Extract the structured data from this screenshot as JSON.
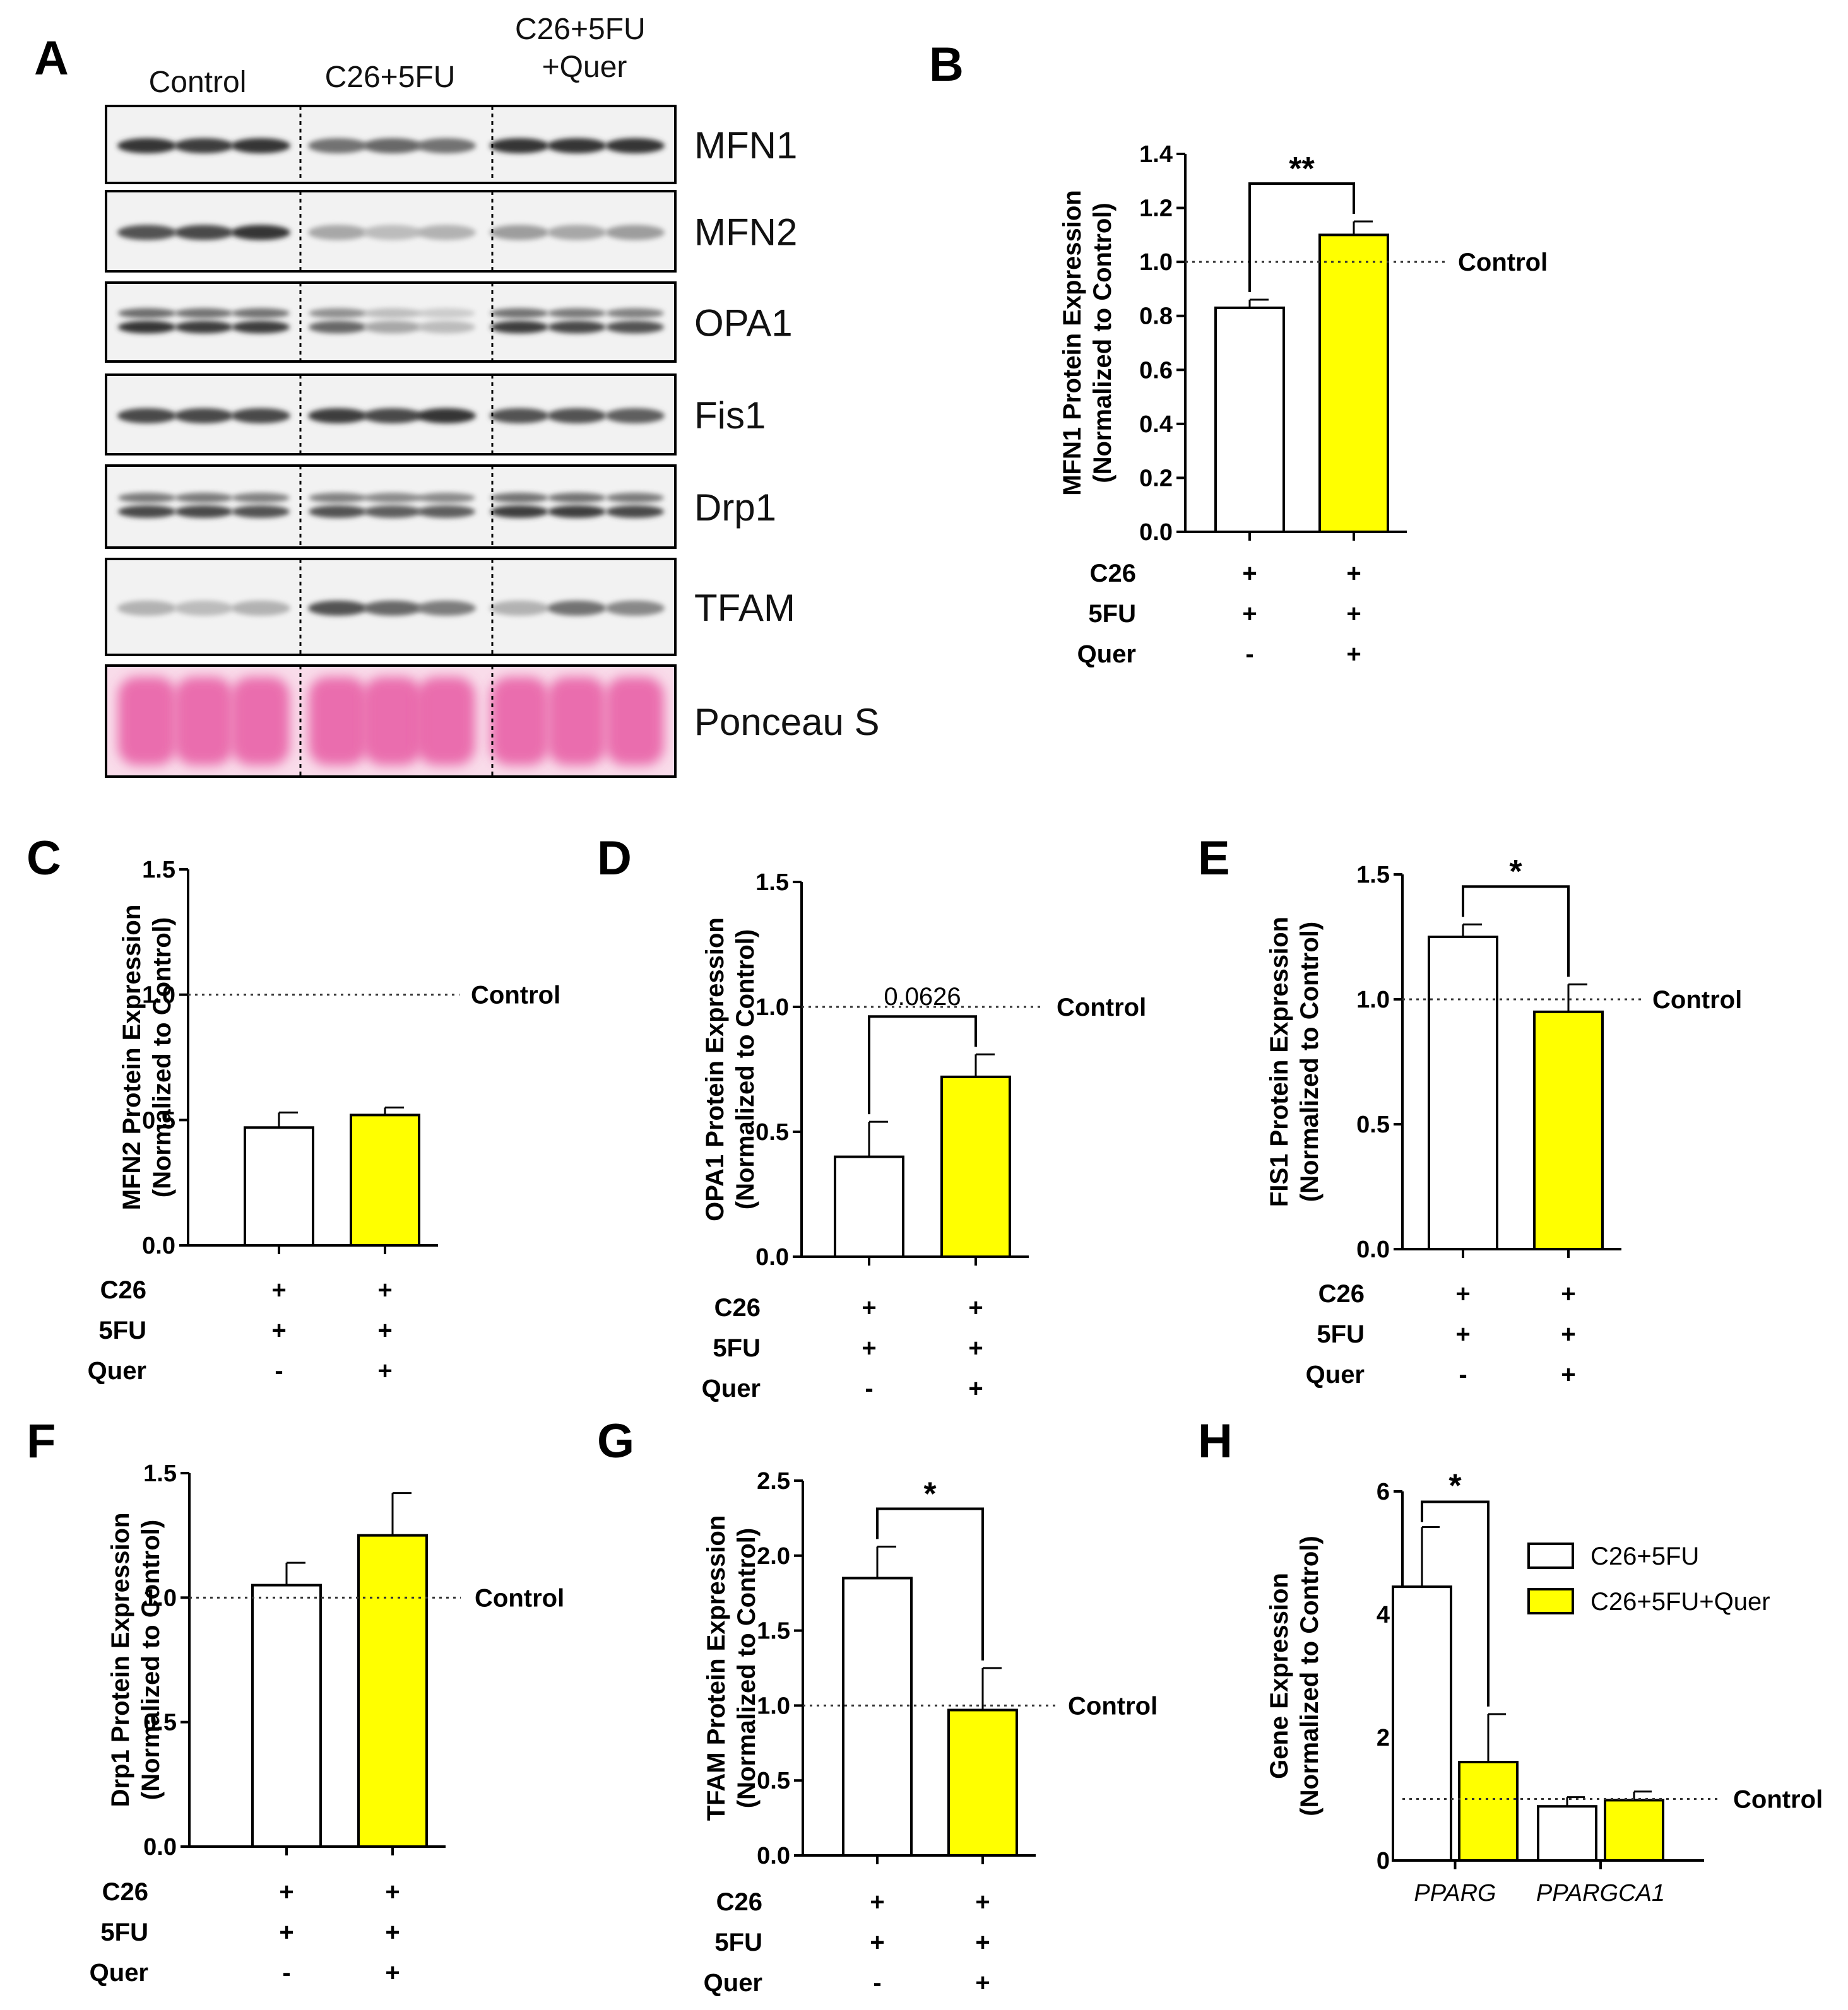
{
  "colors": {
    "quer": "#ffff00",
    "ctrl_bar": "#ffffff",
    "ponceau": "#e5489a"
  },
  "panel_a": {
    "letter": "A",
    "groups": [
      "Control",
      "C26+5FU",
      "C26+5FU\n+Quer"
    ],
    "proteins": [
      {
        "name": "MFN1",
        "intensity": [
          0.85,
          0.8,
          0.85,
          0.55,
          0.6,
          0.55,
          0.85,
          0.85,
          0.85
        ]
      },
      {
        "name": "MFN2",
        "intensity": [
          0.7,
          0.75,
          0.85,
          0.3,
          0.2,
          0.25,
          0.35,
          0.3,
          0.35
        ]
      },
      {
        "name": "OPA1",
        "intensity": [
          0.85,
          0.8,
          0.8,
          0.6,
          0.3,
          0.2,
          0.8,
          0.75,
          0.7
        ]
      },
      {
        "name": "Fis1",
        "intensity": [
          0.75,
          0.75,
          0.75,
          0.8,
          0.75,
          0.85,
          0.7,
          0.7,
          0.65
        ]
      },
      {
        "name": "Drp1",
        "intensity": [
          0.75,
          0.75,
          0.7,
          0.7,
          0.65,
          0.65,
          0.8,
          0.8,
          0.75
        ]
      },
      {
        "name": "TFAM",
        "intensity": [
          0.25,
          0.2,
          0.25,
          0.7,
          0.6,
          0.5,
          0.25,
          0.55,
          0.45
        ]
      },
      {
        "name": "Ponceau S",
        "intensity": [
          1,
          1,
          1,
          1,
          1,
          1,
          1,
          1,
          1
        ]
      }
    ]
  },
  "conditions": {
    "row_labels": [
      "C26",
      "5FU",
      "Quer"
    ],
    "c26_5fu": [
      "+",
      "+",
      "-"
    ],
    "c26_5fu_quer": [
      "+",
      "+",
      "+"
    ]
  },
  "chart_data": [
    {
      "panel": "B",
      "type": "bar",
      "ylabel": [
        "MFN1 Protein Expression",
        "(Normalized to Control)"
      ],
      "ylim": [
        0,
        1.4
      ],
      "yticks": [
        "0.0",
        "0.2",
        "0.4",
        "0.6",
        "0.8",
        "1.0",
        "1.2",
        "1.4"
      ],
      "values": [
        0.83,
        1.1
      ],
      "errors": [
        0.03,
        0.05
      ],
      "control_line": 1.0,
      "control_label": "Control",
      "significance": "**"
    },
    {
      "panel": "C",
      "type": "bar",
      "ylabel": [
        "MFN2 Protein Expression",
        "(Normalized to Control)"
      ],
      "ylim": [
        0,
        1.5
      ],
      "yticks": [
        "0.0",
        "0.5",
        "1.0",
        "1.5"
      ],
      "values": [
        0.47,
        0.52
      ],
      "errors": [
        0.06,
        0.03
      ],
      "control_line": 1.0,
      "control_label": "Control",
      "significance": ""
    },
    {
      "panel": "D",
      "type": "bar",
      "ylabel": [
        "OPA1 Protein Expression",
        "(Normalized to Control)"
      ],
      "ylim": [
        0,
        1.5
      ],
      "yticks": [
        "0.0",
        "0.5",
        "1.0",
        "1.5"
      ],
      "values": [
        0.4,
        0.72
      ],
      "errors": [
        0.14,
        0.09
      ],
      "control_line": 1.0,
      "control_label": "Control",
      "significance": "0.0626"
    },
    {
      "panel": "E",
      "type": "bar",
      "ylabel": [
        "FIS1 Protein Expression",
        "(Normalized to Control)"
      ],
      "ylim": [
        0,
        1.5
      ],
      "yticks": [
        "0.0",
        "0.5",
        "1.0",
        "1.5"
      ],
      "values": [
        1.25,
        0.95
      ],
      "errors": [
        0.05,
        0.11
      ],
      "control_line": 1.0,
      "control_label": "Control",
      "significance": "*"
    },
    {
      "panel": "F",
      "type": "bar",
      "ylabel": [
        "Drp1 Protein Expression",
        "(Normalized to Control)"
      ],
      "ylim": [
        0,
        1.5
      ],
      "yticks": [
        "0.0",
        "0.5",
        "1.0",
        "1.5"
      ],
      "values": [
        1.05,
        1.25
      ],
      "errors": [
        0.09,
        0.17
      ],
      "control_line": 1.0,
      "control_label": "Control",
      "significance": ""
    },
    {
      "panel": "G",
      "type": "bar",
      "ylabel": [
        "TFAM Protein Expression",
        "(Normalized to Control)"
      ],
      "ylim": [
        0,
        2.5
      ],
      "yticks": [
        "0.0",
        "0.5",
        "1.0",
        "1.5",
        "2.0",
        "2.5"
      ],
      "values": [
        1.85,
        0.97
      ],
      "errors": [
        0.21,
        0.28
      ],
      "control_line": 1.0,
      "control_label": "Control",
      "significance": "*"
    },
    {
      "panel": "H",
      "type": "bar",
      "ylabel": [
        "Gene Expression",
        "(Normalized to Control)"
      ],
      "ylim": [
        0,
        6
      ],
      "yticks": [
        "0",
        "2",
        "4",
        "6"
      ],
      "categories": [
        "PPARG",
        "PPARGCA1"
      ],
      "series": [
        {
          "name": "C26+5FU",
          "values": [
            4.45,
            0.88
          ],
          "errors": [
            0.97,
            0.15
          ]
        },
        {
          "name": "C26+5FU+Quer",
          "values": [
            1.6,
            0.98
          ],
          "errors": [
            0.78,
            0.14
          ]
        }
      ],
      "control_line": 1.0,
      "control_label": "Control",
      "significance": "*"
    }
  ]
}
